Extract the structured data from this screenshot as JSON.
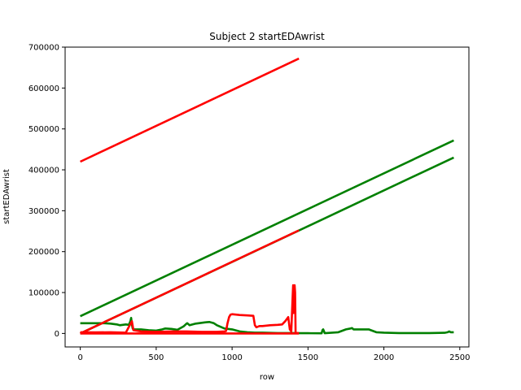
{
  "chart_data": {
    "type": "line",
    "title": "Subject 2 startEDAwrist",
    "xlabel": "row",
    "ylabel": "startEDAwrist",
    "xlim": [
      -100,
      2560
    ],
    "ylim": [
      -33000,
      700000
    ],
    "xticks": [
      0,
      500,
      1000,
      1500,
      2000,
      2500
    ],
    "yticks": [
      0,
      100000,
      200000,
      300000,
      400000,
      500000,
      600000,
      700000
    ],
    "grid": false,
    "series": [
      {
        "color": "#008000",
        "x": [
          0,
          2460
        ],
        "y": [
          42000,
          472000
        ]
      },
      {
        "color": "#008000",
        "x": [
          0,
          2460
        ],
        "y": [
          0,
          430000
        ]
      },
      {
        "color": "#008000",
        "x": [
          0,
          100,
          160,
          200,
          240,
          260,
          300,
          320,
          330,
          335,
          340,
          345,
          350,
          400,
          450,
          500,
          540,
          560,
          600,
          640,
          680,
          700,
          705,
          720,
          760,
          800,
          820,
          850,
          880,
          900,
          950,
          1000,
          1050,
          1100,
          1150,
          1200,
          1300,
          1400,
          1450,
          1500,
          1590,
          1595,
          1600,
          1605,
          1610,
          1700,
          1750,
          1780,
          1790,
          1800,
          1900,
          1950,
          2000,
          2100,
          2200,
          2300,
          2400,
          2420,
          2430,
          2440,
          2460
        ],
        "y": [
          25000,
          25000,
          25000,
          24000,
          22000,
          20000,
          22000,
          21000,
          30000,
          38000,
          22000,
          12000,
          10000,
          10000,
          8000,
          7000,
          10000,
          12000,
          11000,
          9000,
          17000,
          24000,
          25000,
          20000,
          24000,
          26000,
          27000,
          28000,
          25000,
          20000,
          12000,
          10000,
          5000,
          3000,
          2000,
          2000,
          1000,
          1000,
          500,
          500,
          300,
          8000,
          10000,
          6000,
          500,
          3000,
          10000,
          12000,
          13000,
          10000,
          10000,
          3000,
          2000,
          1000,
          1000,
          1000,
          1500,
          3000,
          5000,
          3000,
          3000
        ]
      },
      {
        "color": "#ff0000",
        "x": [
          0,
          1440
        ],
        "y": [
          420000,
          672000
        ]
      },
      {
        "color": "#ff0000",
        "x": [
          0,
          1440
        ],
        "y": [
          0,
          252000
        ]
      },
      {
        "color": "#ff0000",
        "x": [
          0,
          100,
          200,
          300,
          340,
          350,
          400,
          500,
          600,
          700,
          800,
          900,
          950,
          960,
          970,
          980,
          990,
          1000,
          1050,
          1100,
          1140,
          1150,
          1160,
          1180,
          1200,
          1250,
          1300,
          1330,
          1350,
          1370,
          1380,
          1390,
          1400,
          1402,
          1405,
          1408,
          1410,
          1412,
          1415,
          1418,
          1420,
          1440
        ],
        "y": [
          3000,
          2500,
          3000,
          2000,
          30000,
          8000,
          5000,
          4000,
          5000,
          5000,
          4000,
          4000,
          5000,
          6000,
          25000,
          40000,
          46000,
          47000,
          45000,
          44000,
          43000,
          20000,
          15000,
          18000,
          18000,
          20000,
          21000,
          22000,
          30000,
          40000,
          10000,
          5000,
          100000,
          118000,
          50000,
          116000,
          60000,
          118000,
          100000,
          3000,
          1000,
          1000
        ]
      },
      {
        "color": "#ff0000",
        "x": [
          0,
          1440
        ],
        "y": [
          0,
          0
        ]
      }
    ]
  }
}
